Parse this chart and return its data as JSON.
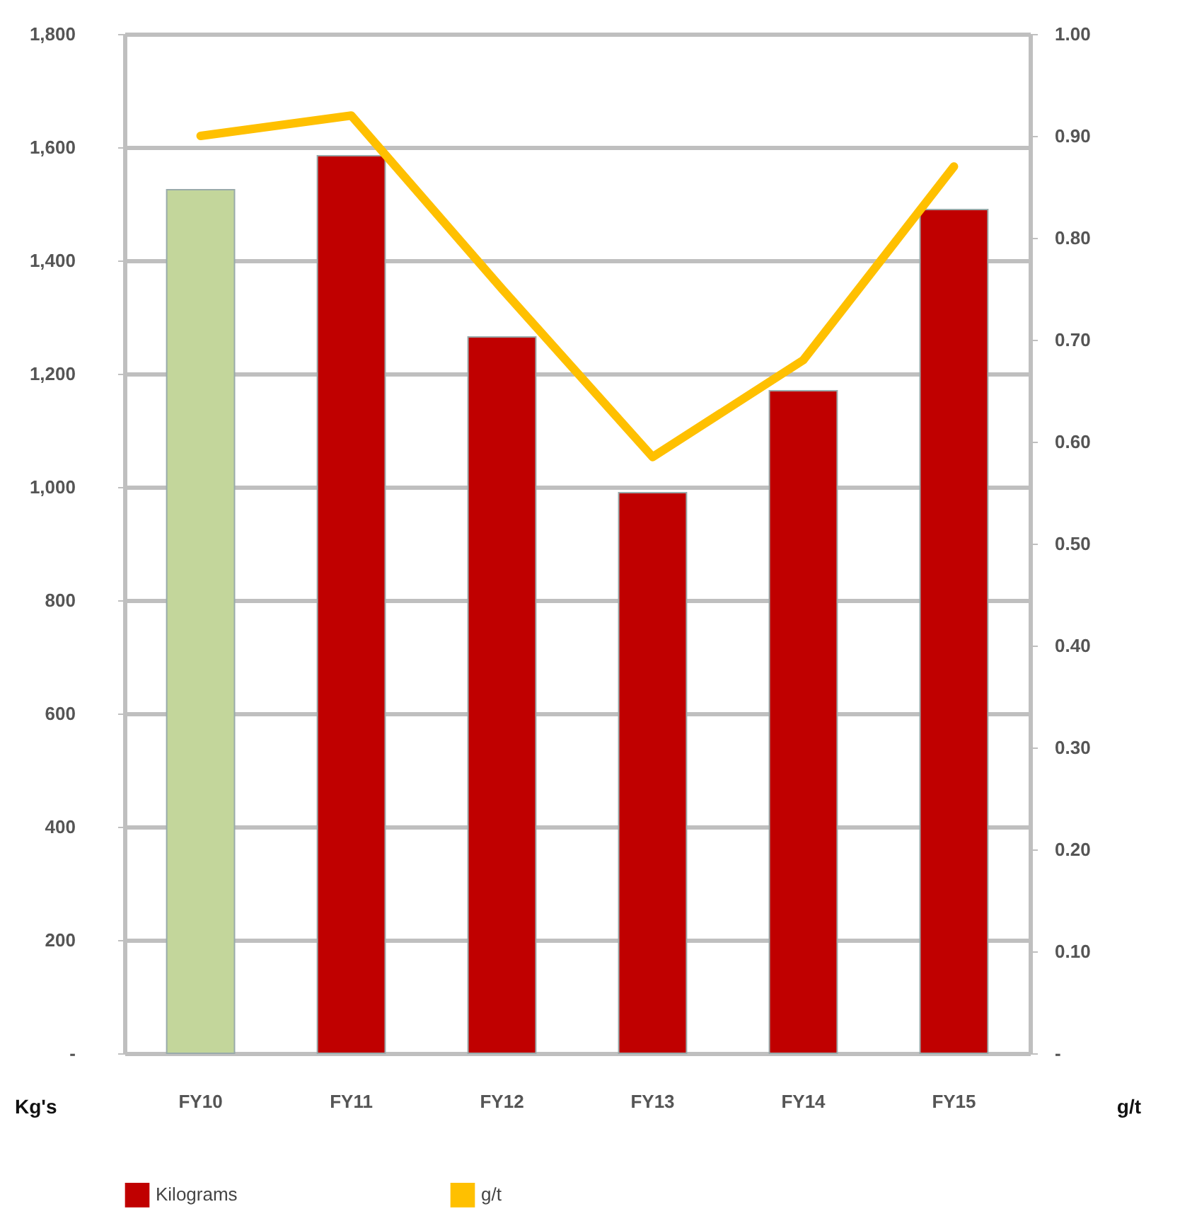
{
  "chart_data": {
    "type": "bar",
    "categories": [
      "FY10",
      "FY11",
      "FY12",
      "FY13",
      "FY14",
      "FY15"
    ],
    "series": [
      {
        "name": "Kilograms",
        "color": "#c00000",
        "colors": [
          "#c3d69b",
          "#c00000",
          "#c00000",
          "#c00000",
          "#c00000",
          "#c00000"
        ],
        "values": [
          1525,
          1585,
          1265,
          990,
          1170,
          1490
        ]
      },
      {
        "name": "g/t",
        "type": "line",
        "axis": "y2",
        "color": "#ffc000",
        "values": [
          0.9,
          0.92,
          0.75,
          0.585,
          0.68,
          0.87
        ]
      }
    ],
    "ylabel": "Kg's",
    "y2label": "g/t",
    "ylim": [
      0,
      1800
    ],
    "yticks": [
      {
        "value": 0,
        "label": "-"
      },
      200,
      400,
      600,
      800,
      {
        "value": 1000,
        "label": "1,000"
      },
      {
        "value": 1200,
        "label": "1,200"
      },
      {
        "value": 1400,
        "label": "1,400"
      },
      {
        "value": 1600,
        "label": "1,600"
      },
      {
        "value": 1800,
        "label": "1,800"
      }
    ],
    "y2lim": [
      0,
      1
    ],
    "y2ticks": [
      {
        "value": 0,
        "label": "-"
      },
      {
        "value": 0.1,
        "label": "0.10"
      },
      {
        "value": 0.2,
        "label": "0.20"
      },
      {
        "value": 0.3,
        "label": "0.30"
      },
      {
        "value": 0.4,
        "label": "0.40"
      },
      {
        "value": 0.5,
        "label": "0.50"
      },
      {
        "value": 0.6,
        "label": "0.60"
      },
      {
        "value": 0.7,
        "label": "0.70"
      },
      {
        "value": 0.8,
        "label": "0.80"
      },
      {
        "value": 0.9,
        "label": "0.90"
      },
      {
        "value": 1,
        "label": "1.00"
      }
    ],
    "grid": "y",
    "legend": "bottom",
    "line_style": "solid",
    "marker": "none"
  }
}
